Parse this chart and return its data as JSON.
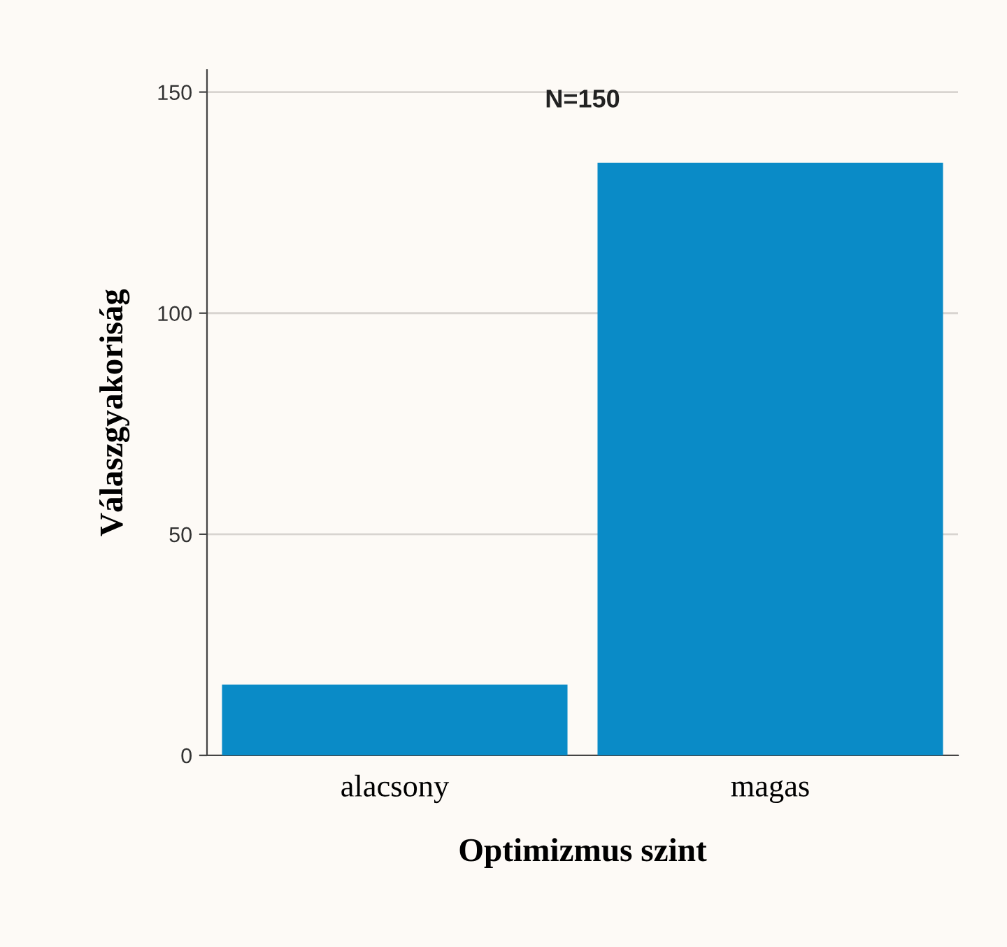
{
  "chart_data": {
    "type": "bar",
    "xlabel": "Optimizmus szint",
    "ylabel": "Válaszgyakoriság",
    "categories": [
      "alacsony",
      "magas"
    ],
    "values": [
      16,
      134
    ],
    "color": "#0a8bc7",
    "ylim": [
      0,
      155
    ],
    "yticks": [
      0,
      50,
      100,
      150
    ],
    "grid": "y",
    "annotations": [
      "N=150"
    ]
  }
}
